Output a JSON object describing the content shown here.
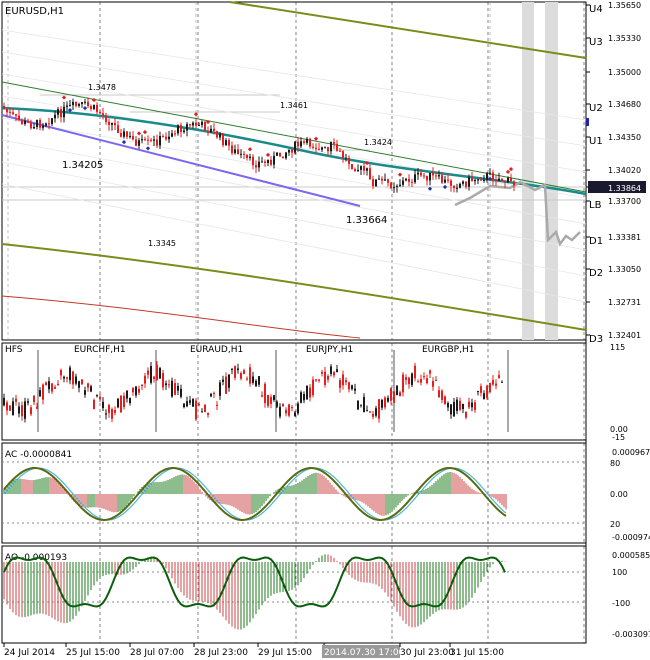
{
  "window": {
    "title": "EURUSD,H1"
  },
  "main": {
    "price_scale": [
      {
        "label": "1.35650",
        "zone": "U4"
      },
      {
        "label": "1.35330",
        "zone": "U3"
      },
      {
        "label": "1.35000"
      },
      {
        "label": "1.34680",
        "zone": "U2"
      },
      {
        "label": "1.34350",
        "zone": "U1"
      },
      {
        "label": "1.34020"
      },
      {
        "label": "1.33864",
        "current": true
      },
      {
        "label": "1.33700",
        "zone": "LB"
      },
      {
        "label": "1.33381",
        "zone": "D1"
      },
      {
        "label": "1.33050",
        "zone": "D2"
      },
      {
        "label": "1.32731"
      },
      {
        "label": "1.32401",
        "zone": "D3"
      }
    ],
    "annotations": [
      "1.3478",
      "1.3461",
      "1.3424",
      "1.34205",
      "1.33664",
      "1.3345"
    ],
    "colors": {
      "bull": "#1a1a1a",
      "bear": "#e41f1f",
      "regression": "#1a8a8a",
      "upper_channel": "#2e7d2e",
      "lower_channel": "#7b68ee",
      "olive": "#7a8c1a",
      "red_line": "#c0392b",
      "current_price_bg": "#1a1a2e"
    }
  },
  "hfs": {
    "title": "HFS",
    "pairs": [
      "EURCHF,H1",
      "EURAUD,H1",
      "EURJPY,H1",
      "EURGBP,H1"
    ],
    "scale": [
      "115",
      "0.00",
      "-15"
    ]
  },
  "ac": {
    "title": "AC -0.0000841",
    "scale": [
      "0.000967",
      "80",
      "0.00",
      "20",
      "-0.000974"
    ]
  },
  "ao": {
    "title": "AO -0.000193",
    "scale": [
      "0.000585",
      "100",
      "-100",
      "-0.003097"
    ]
  },
  "time_axis": {
    "labels": [
      "24 Jul 2014",
      "25 Jul 15:00",
      "28 Jul 07:00",
      "28 Jul 23:00",
      "29 Jul 15:00",
      "2014.07.30 17:00",
      "30 Jul 23:00",
      "31 Jul 15:00"
    ],
    "highlighted": "2014.07.30 17:00"
  }
}
